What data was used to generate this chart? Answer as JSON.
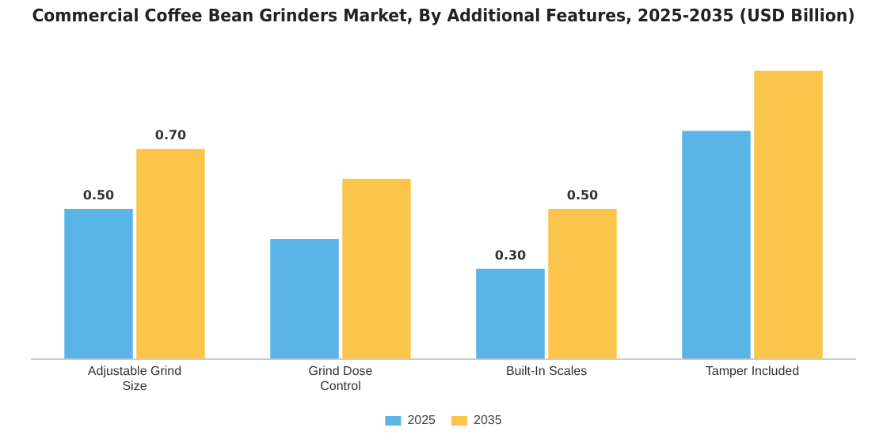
{
  "chart_data": {
    "type": "bar",
    "title": "Commercial Coffee Bean Grinders Market, By Additional Features, 2025-2035 (USD Billion)",
    "categories": [
      "Adjustable Grind Size",
      "Grind Dose Control",
      "Built-In Scales",
      "Tamper Included"
    ],
    "series": [
      {
        "name": "2025",
        "color": "#5ab4e5",
        "values": [
          0.5,
          0.4,
          0.3,
          0.76
        ],
        "value_labels": [
          "0.50",
          null,
          "0.30",
          null
        ]
      },
      {
        "name": "2035",
        "color": "#fbc54c",
        "values": [
          0.7,
          0.6,
          0.5,
          0.96
        ],
        "value_labels": [
          "0.70",
          null,
          "0.50",
          null
        ]
      }
    ],
    "tick_labels": "x",
    "grid": false,
    "legend": "bottom"
  }
}
